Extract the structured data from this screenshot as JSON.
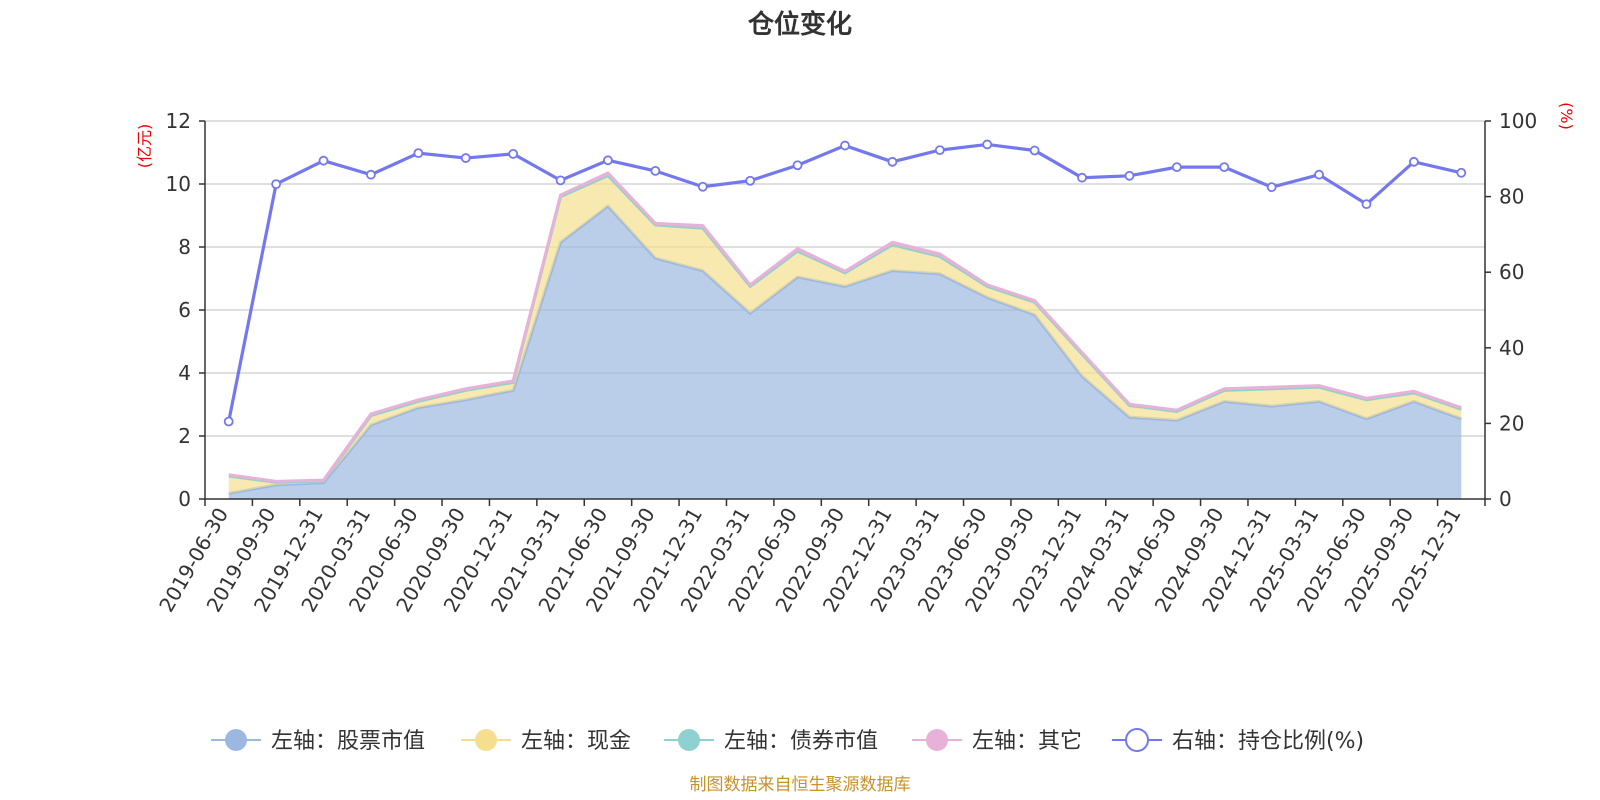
{
  "chart_data": {
    "type": "area",
    "title": "仓位变化",
    "y_left_unit": "(亿元)",
    "y_right_unit": "(%)",
    "ylim_left": [
      0,
      12
    ],
    "ylim_right": [
      0,
      100
    ],
    "yticks_left": [
      "0",
      "2",
      "4",
      "6",
      "8",
      "10",
      "12"
    ],
    "yticks_right": [
      "0",
      "20",
      "40",
      "60",
      "80",
      "100"
    ],
    "categories": [
      "2019-06-30",
      "2019-09-30",
      "2019-12-31",
      "2020-03-31",
      "2020-06-30",
      "2020-09-30",
      "2020-12-31",
      "2021-03-31",
      "2021-06-30",
      "2021-09-30",
      "2021-12-31",
      "2022-03-31",
      "2022-06-30",
      "2022-09-30",
      "2022-12-31",
      "2023-03-31",
      "2023-06-30",
      "2023-09-30",
      "2023-12-31",
      "2024-03-31",
      "2024-06-30",
      "2024-09-30",
      "2024-12-31",
      "2025-03-31",
      "2025-06-30",
      "2025-09-30",
      "2025-12-31"
    ],
    "series": [
      {
        "name": "左轴：股票市值",
        "axis": "left",
        "stack": true,
        "color": "#9cb8e0",
        "values": [
          0.18,
          0.45,
          0.52,
          2.35,
          2.9,
          3.15,
          3.45,
          8.15,
          9.3,
          7.65,
          7.25,
          5.9,
          7.05,
          6.75,
          7.25,
          7.15,
          6.4,
          5.85,
          3.9,
          2.6,
          2.5,
          3.1,
          2.95,
          3.1,
          2.55,
          3.1,
          2.55
        ]
      },
      {
        "name": "左轴：现金",
        "axis": "left",
        "stack": true,
        "color": "#f5df8f",
        "values": [
          0.55,
          0.08,
          0.05,
          0.3,
          0.2,
          0.3,
          0.25,
          1.45,
          0.97,
          1.05,
          1.35,
          0.85,
          0.82,
          0.43,
          0.82,
          0.55,
          0.35,
          0.4,
          0.7,
          0.37,
          0.28,
          0.35,
          0.55,
          0.45,
          0.6,
          0.27,
          0.3
        ]
      },
      {
        "name": "左轴：债券市值",
        "axis": "left",
        "stack": true,
        "color": "#8fd0d0",
        "values": [
          0,
          0,
          0,
          0,
          0,
          0,
          0,
          0,
          0,
          0,
          0,
          0,
          0,
          0,
          0,
          0,
          0,
          0,
          0,
          0,
          0,
          0,
          0,
          0,
          0,
          0,
          0
        ]
      },
      {
        "name": "左轴：其它",
        "axis": "left",
        "stack": true,
        "color": "#e8b2d8",
        "values": [
          0.04,
          0.03,
          0.03,
          0.05,
          0.05,
          0.05,
          0.05,
          0.05,
          0.08,
          0.05,
          0.08,
          0.05,
          0.08,
          0.05,
          0.08,
          0.08,
          0.05,
          0.05,
          0.05,
          0.04,
          0.04,
          0.05,
          0.05,
          0.05,
          0.05,
          0.05,
          0.05
        ]
      },
      {
        "name": "右轴：持仓比例(%)",
        "axis": "right",
        "type": "line",
        "color": "#7478ee",
        "values": [
          20.5,
          83.3,
          89.5,
          85.8,
          91.5,
          90.2,
          91.3,
          84.3,
          89.6,
          86.8,
          82.6,
          84.2,
          88.3,
          93.5,
          89.2,
          92.3,
          93.8,
          92.2,
          85.0,
          85.5,
          87.8,
          87.8,
          82.5,
          85.8,
          78.0,
          89.2,
          86.3
        ]
      }
    ],
    "legend_position": "bottom",
    "grid": true
  },
  "footer": {
    "source": "制图数据来自恒生聚源数据库"
  }
}
